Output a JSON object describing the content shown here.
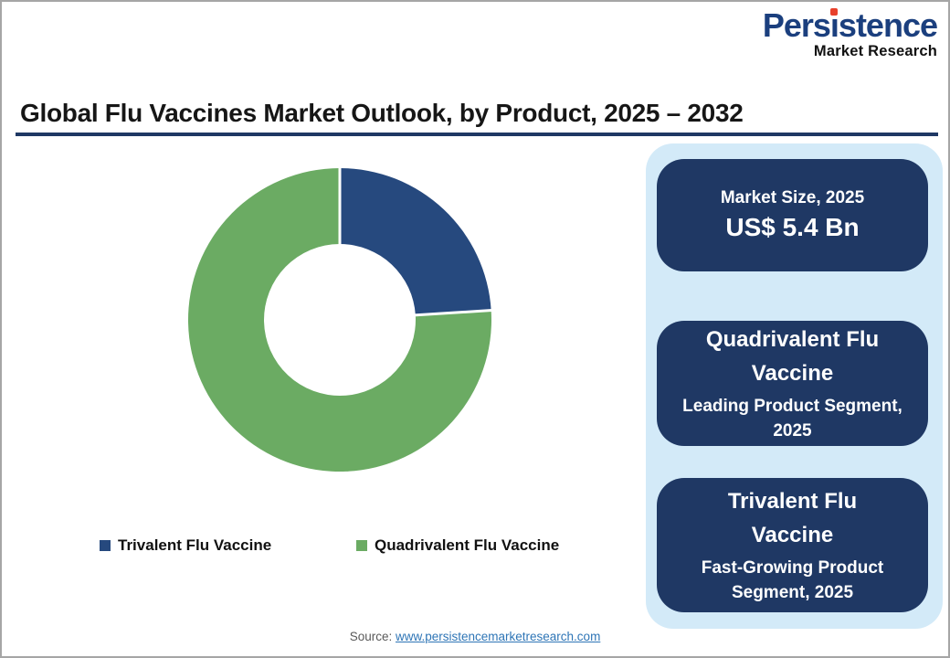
{
  "logo": {
    "name": "Persistence",
    "name_parts": [
      "Pers",
      "ı",
      "stence"
    ],
    "tagline": "Market Research",
    "name_color": "#1b3f7e",
    "dot_color": "#e8412c"
  },
  "header": {
    "title": "Global Flu Vaccines Market Outlook, by Product, 2025 – 2032",
    "underline_color": "#1f3864"
  },
  "chart_data": {
    "type": "pie",
    "subtype": "donut",
    "title": "Global Flu Vaccines Market Outlook, by Product, 2025 – 2032",
    "categories": [
      "Trivalent Flu Vaccine",
      "Quadrivalent Flu Vaccine"
    ],
    "values": [
      24,
      76
    ],
    "unit": "percent-share-estimated-from-arc",
    "colors": [
      "#26497e",
      "#6bab63"
    ],
    "start_angle": "top",
    "direction": "clockwise",
    "inner_radius_ratio": 0.5,
    "separator_color": "#ffffff",
    "legend_position": "bottom"
  },
  "info_panel": {
    "bg": "#d3eaf8",
    "card_bg": "#1f3864",
    "cards": [
      {
        "title": "Market Size, 2025",
        "value": "US$ 5.4 Bn"
      },
      {
        "title": "Quadrivalent Flu Vaccine",
        "subtitle": "Leading Product Segment, 2025"
      },
      {
        "title": "Trivalent Flu Vaccine",
        "subtitle": "Fast-Growing Product Segment, 2025"
      }
    ]
  },
  "footer": {
    "source_label": "Source:",
    "source_link": "www.persistencemarketresearch.com",
    "link_color": "#2e75b6"
  }
}
